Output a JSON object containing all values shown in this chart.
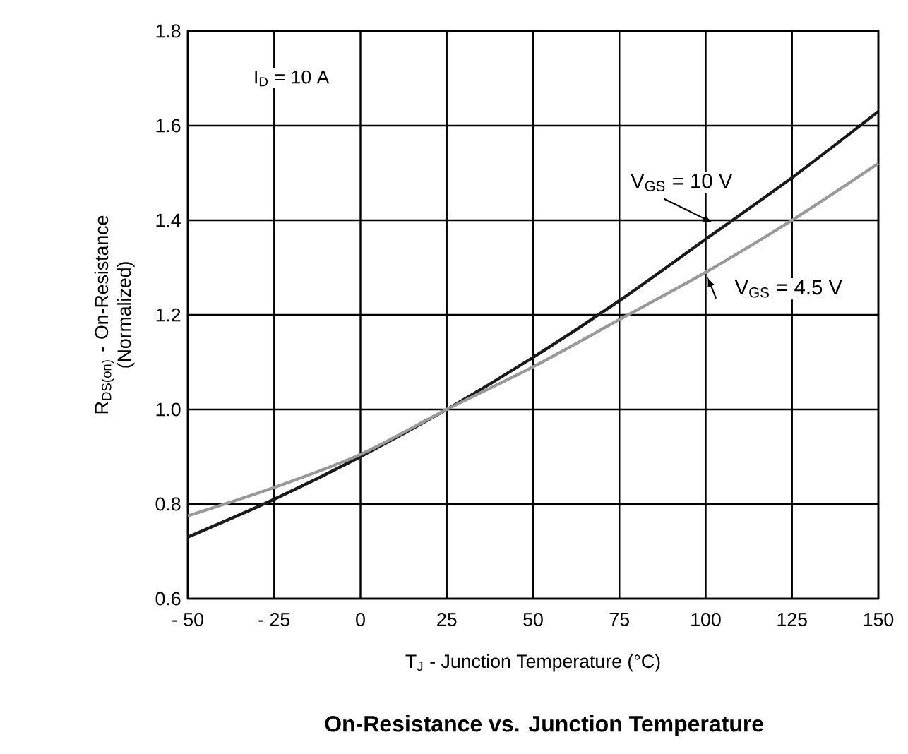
{
  "chart_data": {
    "type": "line",
    "title": "On-Resistance vs. Junction Temperature",
    "xlabel": "T$_{J}$ - Junction Temperature (°C)",
    "ylabel": "R$_{DS(on)}$ - On-Resistance (Normalized)",
    "annotations": [
      "I$_{D}$ = 10 A"
    ],
    "x": [
      -50,
      -25,
      0,
      25,
      50,
      75,
      100,
      125,
      150
    ],
    "series": [
      {
        "name": "V$_{GS}$ = 10 V",
        "color": "#1a1a1a",
        "values": [
          0.73,
          0.81,
          0.9,
          1.0,
          1.11,
          1.23,
          1.36,
          1.49,
          1.63
        ]
      },
      {
        "name": "V$_{GS}$ = 4.5 V",
        "color": "#999999",
        "values": [
          0.775,
          0.835,
          0.905,
          1.0,
          1.09,
          1.19,
          1.29,
          1.4,
          1.52
        ]
      }
    ],
    "xlim": [
      -50,
      150
    ],
    "xticks": [
      {
        "value": -50,
        "label": "- 50"
      },
      {
        "value": -25,
        "label": "- 25"
      },
      0,
      25,
      50,
      75,
      100,
      125,
      150
    ],
    "ylim": [
      0.6,
      1.8
    ],
    "yticks": [
      {
        "value": 0.6,
        "label": "0.6"
      },
      {
        "value": 0.8,
        "label": "0.8"
      },
      {
        "value": 1.0,
        "label": "1.0"
      },
      {
        "value": 1.2,
        "label": "1.2"
      },
      {
        "value": 1.4,
        "label": "1.4"
      },
      {
        "value": 1.6,
        "label": "1.6"
      },
      {
        "value": 1.8,
        "label": "1.8"
      }
    ],
    "grid": true,
    "legend": false,
    "marker": "none",
    "line_style": "solid"
  }
}
